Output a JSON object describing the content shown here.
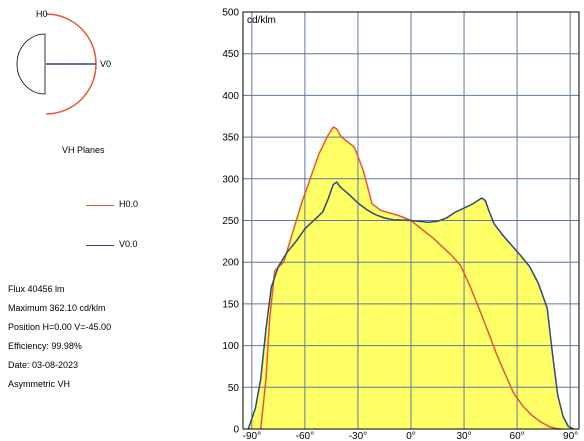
{
  "diagram": {
    "h_label": "H0",
    "v_label": "V0",
    "caption": "VH Planes",
    "h_color": "#e8563a",
    "v_color": "#2e4a7a"
  },
  "legend": [
    {
      "name": "H0.0",
      "color": "#e8563a"
    },
    {
      "name": "V0.0",
      "color": "#2e4a7a"
    }
  ],
  "info": {
    "flux": "Flux 40456  lm",
    "maximum": "Maximum 362.10  cd/klm",
    "position": "Position H=0.00 V=-45.00",
    "efficiency": "Efficiency:  99.98%",
    "date": "Date: 03-08-2023",
    "type": "Asymmetric VH"
  },
  "chart_data": {
    "type": "area",
    "unit_label": "cd/klm",
    "xlim": [
      -95,
      95
    ],
    "ylim": [
      0,
      500
    ],
    "x_ticks": [
      -90,
      -60,
      -30,
      0,
      30,
      60,
      90
    ],
    "x_tick_labels": [
      "-90°",
      "-60°",
      "-30°",
      "0°",
      "30°",
      "60°",
      "90°"
    ],
    "y_ticks": [
      0,
      50,
      100,
      150,
      200,
      250,
      300,
      350,
      400,
      450,
      500
    ],
    "y_tick_labels": [
      "0",
      "50",
      "100",
      "150",
      "200",
      "250",
      "300",
      "350",
      "400",
      "450",
      "500"
    ],
    "grid": true,
    "fill_color": "#ffff66",
    "series": [
      {
        "name": "H0.0",
        "color": "#e8563a",
        "x": [
          -85,
          -82,
          -80,
          -77,
          -72,
          -67,
          -62,
          -57,
          -52,
          -47,
          -44,
          -42,
          -40,
          -37,
          -32,
          -27,
          -22,
          -17,
          -12,
          -7,
          0,
          7,
          13,
          18,
          23,
          28,
          33,
          38,
          43,
          48,
          53,
          58,
          63,
          68,
          73,
          78,
          83,
          85
        ],
        "y": [
          0,
          60,
          130,
          190,
          200,
          235,
          270,
          300,
          330,
          352,
          362,
          360,
          352,
          346,
          338,
          310,
          270,
          262,
          259,
          256,
          250,
          238,
          228,
          218,
          208,
          196,
          173,
          147,
          120,
          92,
          67,
          43,
          28,
          17,
          9,
          3,
          0,
          0
        ]
      },
      {
        "name": "V0.0",
        "color": "#2e4a7a",
        "x": [
          -92,
          -88,
          -85,
          -82,
          -79,
          -75,
          -70,
          -65,
          -60,
          -55,
          -50,
          -47,
          -44,
          -42,
          -40,
          -35,
          -30,
          -25,
          -20,
          -15,
          -10,
          0,
          10,
          15,
          20,
          25,
          30,
          35,
          40,
          42,
          44,
          47,
          52,
          57,
          62,
          67,
          72,
          77,
          80,
          83,
          86,
          89,
          92
        ],
        "y": [
          0,
          25,
          60,
          120,
          170,
          195,
          212,
          225,
          240,
          250,
          260,
          275,
          293,
          296,
          290,
          281,
          271,
          263,
          257,
          253,
          251,
          250,
          248,
          249,
          253,
          260,
          265,
          270,
          277,
          274,
          262,
          246,
          232,
          220,
          208,
          195,
          175,
          145,
          90,
          40,
          15,
          3,
          0
        ]
      }
    ]
  }
}
